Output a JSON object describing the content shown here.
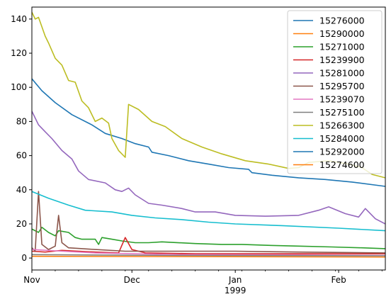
{
  "chart_data": {
    "type": "line",
    "title": "",
    "xlabel": "",
    "ylabel": "",
    "x_range": [
      "1998-11-01",
      "1999-02-15"
    ],
    "ylim": [
      -7,
      147
    ],
    "yticks": [
      0,
      20,
      40,
      60,
      80,
      100,
      120,
      140
    ],
    "x_major_ticks": [
      {
        "date": "1998-11-01",
        "label": "Nov"
      },
      {
        "date": "1998-12-01",
        "label": "Dec"
      },
      {
        "date": "1999-01-01",
        "label": "Jan"
      },
      {
        "date": "1999-02-01",
        "label": "Feb"
      }
    ],
    "x_year_label": "1999",
    "grid": false,
    "legend_position": "top-right",
    "series": [
      {
        "name": "15276000",
        "color": "#1f77b4",
        "points": [
          [
            "1998-11-01",
            105
          ],
          [
            "1998-11-04",
            98
          ],
          [
            "1998-11-08",
            91
          ],
          [
            "1998-11-13",
            84
          ],
          [
            "1998-11-19",
            78
          ],
          [
            "1998-11-23",
            73
          ],
          [
            "1998-11-28",
            70
          ],
          [
            "1998-12-02",
            67
          ],
          [
            "1998-12-06",
            65
          ],
          [
            "1998-12-07",
            62
          ],
          [
            "1998-12-12",
            60
          ],
          [
            "1998-12-18",
            57
          ],
          [
            "1998-12-24",
            55
          ],
          [
            "1998-12-30",
            53
          ],
          [
            "1999-01-05",
            52
          ],
          [
            "1999-01-06",
            50
          ],
          [
            "1999-01-12",
            48.5
          ],
          [
            "1999-01-20",
            47
          ],
          [
            "1999-01-28",
            46
          ],
          [
            "1999-02-05",
            44.5
          ],
          [
            "1999-02-15",
            42
          ]
        ]
      },
      {
        "name": "15290000",
        "color": "#ff7f0e",
        "points": [
          [
            "1998-11-01",
            1.0
          ],
          [
            "1999-02-15",
            0.6
          ]
        ]
      },
      {
        "name": "15271000",
        "color": "#2ca02c",
        "points": [
          [
            "1998-11-01",
            17
          ],
          [
            "1998-11-03",
            15
          ],
          [
            "1998-11-04",
            18
          ],
          [
            "1998-11-06",
            15
          ],
          [
            "1998-11-08",
            13
          ],
          [
            "1998-11-09",
            16
          ],
          [
            "1998-11-12",
            15
          ],
          [
            "1998-11-14",
            12
          ],
          [
            "1998-11-16",
            11
          ],
          [
            "1998-11-20",
            11
          ],
          [
            "1998-11-21",
            8
          ],
          [
            "1998-11-22",
            12
          ],
          [
            "1998-11-25",
            11
          ],
          [
            "1998-11-28",
            10
          ],
          [
            "1998-12-02",
            9
          ],
          [
            "1998-12-06",
            9
          ],
          [
            "1998-12-10",
            9.5
          ],
          [
            "1998-12-20",
            8.5
          ],
          [
            "1998-12-28",
            8
          ],
          [
            "1999-01-03",
            8
          ],
          [
            "1999-01-10",
            7.5
          ],
          [
            "1999-01-20",
            7
          ],
          [
            "1999-01-30",
            6.5
          ],
          [
            "1999-02-08",
            6
          ],
          [
            "1999-02-15",
            5.5
          ]
        ]
      },
      {
        "name": "15239900",
        "color": "#d62728",
        "points": [
          [
            "1998-11-01",
            4
          ],
          [
            "1998-11-05",
            3.5
          ],
          [
            "1998-11-10",
            4.5
          ],
          [
            "1998-11-20",
            3.5
          ],
          [
            "1998-11-27",
            3
          ],
          [
            "1998-11-29",
            12
          ],
          [
            "1998-12-01",
            5
          ],
          [
            "1998-12-05",
            3
          ],
          [
            "1998-12-20",
            2.5
          ],
          [
            "1999-01-10",
            2.5
          ],
          [
            "1999-02-15",
            2.5
          ]
        ]
      },
      {
        "name": "15281000",
        "color": "#9467bd",
        "points": [
          [
            "1998-11-01",
            86
          ],
          [
            "1998-11-03",
            78
          ],
          [
            "1998-11-05",
            74
          ],
          [
            "1998-11-07",
            70
          ],
          [
            "1998-11-10",
            63
          ],
          [
            "1998-11-13",
            58
          ],
          [
            "1998-11-15",
            51
          ],
          [
            "1998-11-18",
            46
          ],
          [
            "1998-11-23",
            44
          ],
          [
            "1998-11-26",
            40
          ],
          [
            "1998-11-28",
            39
          ],
          [
            "1998-11-30",
            41
          ],
          [
            "1998-12-02",
            37
          ],
          [
            "1998-12-06",
            32
          ],
          [
            "1998-12-10",
            31
          ],
          [
            "1998-12-16",
            29
          ],
          [
            "1998-12-20",
            27
          ],
          [
            "1998-12-26",
            27
          ],
          [
            "1999-01-01",
            25
          ],
          [
            "1999-01-10",
            24.5
          ],
          [
            "1999-01-20",
            25
          ],
          [
            "1999-01-26",
            28
          ],
          [
            "1999-01-29",
            30
          ],
          [
            "1999-02-03",
            26
          ],
          [
            "1999-02-07",
            24
          ],
          [
            "1999-02-09",
            29
          ],
          [
            "1999-02-12",
            23
          ],
          [
            "1999-02-15",
            20
          ]
        ]
      },
      {
        "name": "15295700",
        "color": "#8c564b",
        "points": [
          [
            "1998-11-01",
            6
          ],
          [
            "1998-11-02",
            4
          ],
          [
            "1998-11-03",
            39
          ],
          [
            "1998-11-04",
            8
          ],
          [
            "1998-11-06",
            5
          ],
          [
            "1998-11-08",
            7
          ],
          [
            "1998-11-09",
            25
          ],
          [
            "1998-11-10",
            9
          ],
          [
            "1998-11-12",
            6
          ],
          [
            "1998-11-20",
            5
          ],
          [
            "1998-11-29",
            4
          ],
          [
            "1998-12-10",
            4
          ],
          [
            "1999-01-01",
            4
          ],
          [
            "1999-01-20",
            3.5
          ],
          [
            "1999-02-15",
            3
          ]
        ]
      },
      {
        "name": "15239070",
        "color": "#e377c2",
        "points": [
          [
            "1998-11-01",
            5
          ],
          [
            "1998-11-10",
            4
          ],
          [
            "1998-11-20",
            3
          ],
          [
            "1998-12-15",
            2
          ],
          [
            "1999-01-20",
            1.8
          ],
          [
            "1999-02-15",
            1.5
          ]
        ]
      },
      {
        "name": "15275100",
        "color": "#7f7f7f",
        "points": [
          [
            "1998-11-01",
            2
          ],
          [
            "1998-12-15",
            1.5
          ],
          [
            "1999-02-15",
            1.3
          ]
        ]
      },
      {
        "name": "15266300",
        "color": "#bcbd22",
        "points": [
          [
            "1998-11-01",
            144
          ],
          [
            "1998-11-02",
            140
          ],
          [
            "1998-11-03",
            141
          ],
          [
            "1998-11-05",
            130
          ],
          [
            "1998-11-06",
            126
          ],
          [
            "1998-11-08",
            117
          ],
          [
            "1998-11-10",
            113
          ],
          [
            "1998-11-12",
            104
          ],
          [
            "1998-11-14",
            103
          ],
          [
            "1998-11-16",
            92
          ],
          [
            "1998-11-18",
            88
          ],
          [
            "1998-11-20",
            80
          ],
          [
            "1998-11-22",
            82
          ],
          [
            "1998-11-24",
            79
          ],
          [
            "1998-11-25",
            70
          ],
          [
            "1998-11-27",
            63
          ],
          [
            "1998-11-29",
            59
          ],
          [
            "1998-11-30",
            90
          ],
          [
            "1998-12-03",
            87
          ],
          [
            "1998-12-07",
            80
          ],
          [
            "1998-12-11",
            77
          ],
          [
            "1998-12-16",
            70
          ],
          [
            "1998-12-22",
            65
          ],
          [
            "1998-12-28",
            61
          ],
          [
            "1999-01-04",
            57
          ],
          [
            "1999-01-11",
            55
          ],
          [
            "1999-01-17",
            52.5
          ],
          [
            "1999-01-20",
            53
          ],
          [
            "1999-01-23",
            56
          ],
          [
            "1999-01-29",
            57
          ],
          [
            "1999-02-04",
            55
          ],
          [
            "1999-02-08",
            53
          ],
          [
            "1999-02-11",
            49
          ],
          [
            "1999-02-15",
            47
          ]
        ]
      },
      {
        "name": "15284000",
        "color": "#17becf",
        "points": [
          [
            "1998-11-01",
            39
          ],
          [
            "1998-11-06",
            35
          ],
          [
            "1998-11-12",
            31
          ],
          [
            "1998-11-17",
            28
          ],
          [
            "1998-11-25",
            27
          ],
          [
            "1998-12-01",
            25
          ],
          [
            "1998-12-08",
            23.5
          ],
          [
            "1998-12-16",
            22.5
          ],
          [
            "1998-12-24",
            21
          ],
          [
            "1999-01-01",
            20
          ],
          [
            "1999-01-15",
            19
          ],
          [
            "1999-02-01",
            17.5
          ],
          [
            "1999-02-15",
            16
          ]
        ]
      },
      {
        "name": "15292000",
        "color": "#1f77b4",
        "points": []
      },
      {
        "name": "15274600",
        "color": "#ff7f0e",
        "points": []
      }
    ]
  }
}
